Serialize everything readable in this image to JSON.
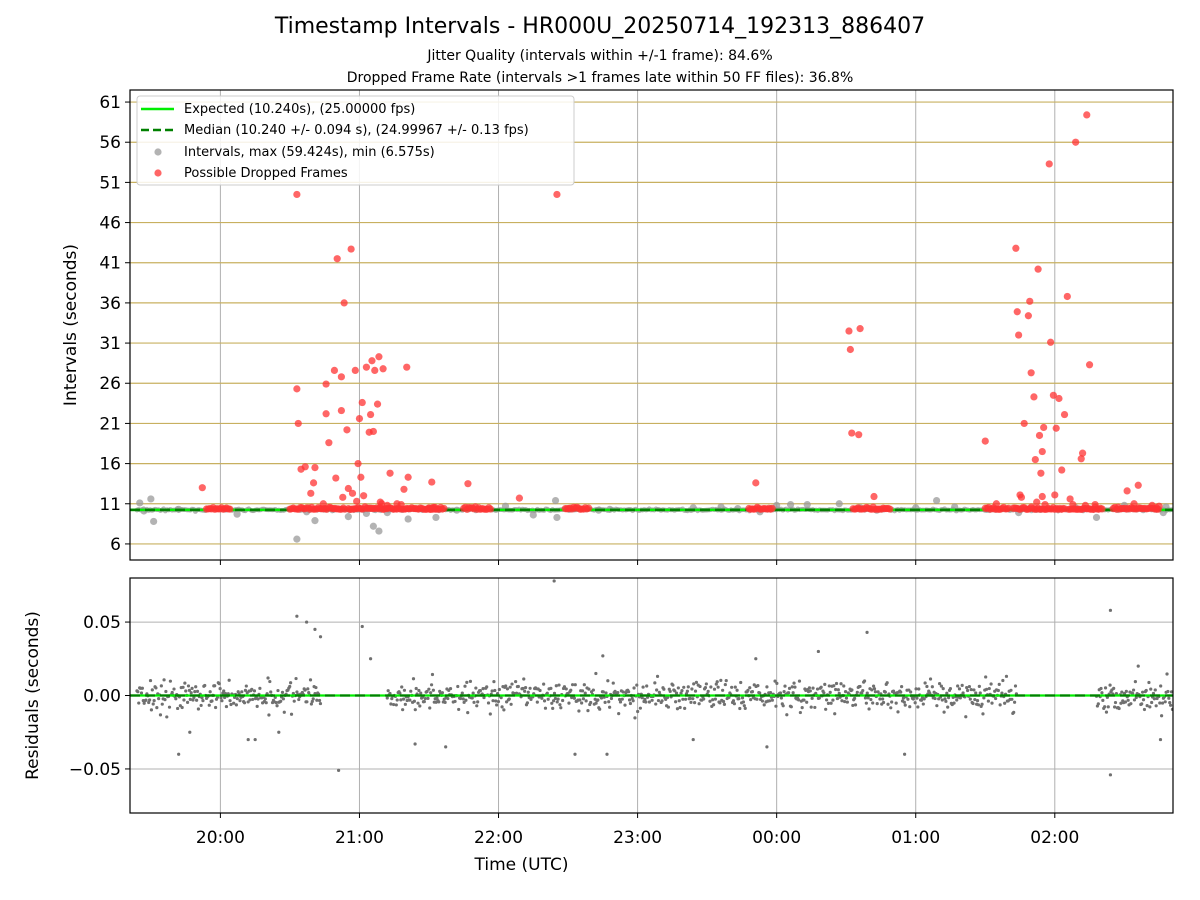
{
  "title": "Timestamp Intervals - HR000U_20250714_192313_886407",
  "subtitle_1": "Jitter Quality (intervals within +/-1 frame): 84.6%",
  "subtitle_2": "Dropped Frame Rate (intervals >1 frames late within 50 FF files): 36.8%",
  "colors": {
    "expected": "#00ee00",
    "median": "#008000",
    "intervals": "#999999",
    "dropped": "#ff3333",
    "residual_points": "#707070",
    "hgrid_top": "#c8b060",
    "grid": "#b0b0b0"
  },
  "chart_data": [
    {
      "type": "scatter",
      "name": "intervals",
      "ylabel": "Intervals (seconds)",
      "xlim": [
        19.35,
        26.85
      ],
      "ylim": [
        4.0,
        62.5
      ],
      "yticks": [
        6,
        11,
        16,
        21,
        26,
        31,
        36,
        41,
        46,
        51,
        56,
        61
      ],
      "ytick_labels": [
        "6",
        "11",
        "16",
        "21",
        "26",
        "31",
        "36",
        "41",
        "46",
        "51",
        "56",
        "61"
      ],
      "grid": true,
      "legend_position": "top-left",
      "legend": [
        {
          "key": "expected",
          "label": "Expected (10.240s), (25.00000 fps)"
        },
        {
          "key": "median",
          "label": "Median (10.240 +/- 0.094 s), (24.99967 +/- 0.13 fps)"
        },
        {
          "key": "intervals",
          "label": "Intervals, max (59.424s), min (6.575s)"
        },
        {
          "key": "dropped",
          "label": "Possible Dropped Frames"
        }
      ],
      "expected_interval": 10.24,
      "median_interval": 10.24,
      "series": [
        {
          "name": "Intervals",
          "color_key": "intervals",
          "points": [
            [
              19.42,
              11.1
            ],
            [
              19.45,
              10.1
            ],
            [
              19.5,
              11.6
            ],
            [
              19.52,
              8.8
            ],
            [
              19.7,
              10.3
            ],
            [
              20.12,
              9.7
            ],
            [
              20.55,
              6.6
            ],
            [
              20.62,
              10.0
            ],
            [
              20.68,
              8.9
            ],
            [
              20.75,
              10.4
            ],
            [
              20.92,
              9.4
            ],
            [
              21.05,
              9.8
            ],
            [
              21.1,
              8.2
            ],
            [
              21.14,
              7.6
            ],
            [
              21.2,
              9.9
            ],
            [
              21.35,
              9.1
            ],
            [
              21.55,
              9.3
            ],
            [
              21.7,
              10.2
            ],
            [
              22.05,
              10.7
            ],
            [
              22.25,
              9.6
            ],
            [
              22.41,
              11.4
            ],
            [
              22.42,
              9.3
            ],
            [
              22.72,
              10.2
            ],
            [
              22.8,
              10.3
            ],
            [
              23.4,
              10.5
            ],
            [
              23.6,
              10.6
            ],
            [
              23.72,
              10.4
            ],
            [
              23.88,
              10.0
            ],
            [
              23.96,
              10.4
            ],
            [
              24.0,
              10.8
            ],
            [
              24.1,
              10.9
            ],
            [
              24.22,
              10.9
            ],
            [
              24.45,
              11.0
            ],
            [
              24.6,
              10.5
            ],
            [
              24.72,
              10.2
            ],
            [
              25.0,
              10.5
            ],
            [
              25.15,
              11.4
            ],
            [
              25.28,
              10.6
            ],
            [
              25.74,
              9.9
            ],
            [
              25.9,
              10.3
            ],
            [
              26.15,
              10.5
            ],
            [
              26.3,
              9.3
            ],
            [
              26.5,
              10.8
            ],
            [
              26.78,
              9.9
            ],
            [
              26.8,
              10.6
            ]
          ]
        },
        {
          "name": "Possible Dropped Frames",
          "color_key": "dropped",
          "points": [
            [
              19.87,
              13.0
            ],
            [
              20.55,
              49.5
            ],
            [
              20.55,
              25.3
            ],
            [
              20.56,
              21.0
            ],
            [
              20.58,
              15.3
            ],
            [
              20.61,
              15.6
            ],
            [
              20.65,
              12.3
            ],
            [
              20.67,
              13.6
            ],
            [
              20.68,
              15.5
            ],
            [
              20.74,
              11.0
            ],
            [
              20.76,
              22.2
            ],
            [
              20.76,
              25.9
            ],
            [
              20.78,
              18.6
            ],
            [
              20.82,
              27.6
            ],
            [
              20.83,
              14.2
            ],
            [
              20.84,
              41.5
            ],
            [
              20.87,
              26.8
            ],
            [
              20.87,
              22.6
            ],
            [
              20.88,
              11.8
            ],
            [
              20.89,
              36.0
            ],
            [
              20.91,
              20.2
            ],
            [
              20.92,
              12.9
            ],
            [
              20.94,
              42.7
            ],
            [
              20.95,
              12.3
            ],
            [
              20.97,
              27.6
            ],
            [
              20.98,
              11.3
            ],
            [
              20.99,
              16.0
            ],
            [
              21.0,
              21.6
            ],
            [
              21.01,
              14.3
            ],
            [
              21.02,
              23.6
            ],
            [
              21.03,
              12.0
            ],
            [
              21.05,
              28.0
            ],
            [
              21.07,
              19.9
            ],
            [
              21.08,
              22.1
            ],
            [
              21.09,
              28.8
            ],
            [
              21.1,
              20.0
            ],
            [
              21.11,
              27.6
            ],
            [
              21.13,
              23.4
            ],
            [
              21.14,
              29.3
            ],
            [
              21.15,
              11.2
            ],
            [
              21.16,
              11.0
            ],
            [
              21.17,
              27.8
            ],
            [
              21.2,
              10.8
            ],
            [
              21.22,
              14.8
            ],
            [
              21.27,
              11.0
            ],
            [
              21.3,
              10.9
            ],
            [
              21.32,
              12.8
            ],
            [
              21.34,
              28.0
            ],
            [
              21.35,
              14.3
            ],
            [
              21.52,
              13.7
            ],
            [
              21.78,
              13.5
            ],
            [
              22.15,
              11.7
            ],
            [
              22.42,
              49.5
            ],
            [
              23.85,
              13.6
            ],
            [
              24.52,
              32.5
            ],
            [
              24.53,
              30.2
            ],
            [
              24.54,
              19.8
            ],
            [
              24.59,
              19.6
            ],
            [
              24.6,
              32.8
            ],
            [
              24.7,
              11.9
            ],
            [
              25.5,
              18.8
            ],
            [
              25.58,
              11.0
            ],
            [
              25.72,
              42.8
            ],
            [
              25.73,
              34.9
            ],
            [
              25.74,
              32.0
            ],
            [
              25.75,
              12.1
            ],
            [
              25.76,
              11.8
            ],
            [
              25.78,
              21.0
            ],
            [
              25.81,
              34.4
            ],
            [
              25.82,
              36.2
            ],
            [
              25.83,
              27.3
            ],
            [
              25.85,
              24.3
            ],
            [
              25.86,
              16.5
            ],
            [
              25.87,
              11.2
            ],
            [
              25.88,
              40.2
            ],
            [
              25.89,
              19.5
            ],
            [
              25.9,
              14.8
            ],
            [
              25.91,
              11.9
            ],
            [
              25.91,
              17.5
            ],
            [
              25.92,
              20.5
            ],
            [
              25.93,
              10.9
            ],
            [
              25.96,
              53.3
            ],
            [
              25.97,
              31.1
            ],
            [
              25.99,
              24.5
            ],
            [
              26.0,
              12.1
            ],
            [
              26.01,
              20.4
            ],
            [
              26.03,
              24.1
            ],
            [
              26.05,
              15.2
            ],
            [
              26.07,
              22.1
            ],
            [
              26.09,
              36.8
            ],
            [
              26.11,
              11.6
            ],
            [
              26.13,
              10.9
            ],
            [
              26.15,
              56.0
            ],
            [
              26.19,
              16.6
            ],
            [
              26.2,
              17.3
            ],
            [
              26.22,
              10.8
            ],
            [
              26.23,
              59.4
            ],
            [
              26.25,
              28.3
            ],
            [
              26.29,
              10.9
            ],
            [
              26.52,
              12.6
            ],
            [
              26.57,
              11.0
            ],
            [
              26.6,
              13.3
            ],
            [
              26.7,
              10.8
            ],
            [
              26.73,
              10.5
            ],
            [
              26.75,
              10.7
            ]
          ],
          "clusters": [
            [
              19.9,
              20.08
            ],
            [
              20.5,
              20.9
            ],
            [
              20.92,
              21.55
            ],
            [
              21.5,
              21.62
            ],
            [
              21.75,
              21.95
            ],
            [
              22.48,
              22.65
            ],
            [
              23.8,
              23.98
            ],
            [
              24.55,
              24.82
            ],
            [
              25.5,
              25.68
            ],
            [
              25.7,
              26.08
            ],
            [
              26.1,
              26.35
            ],
            [
              26.42,
              26.75
            ]
          ],
          "cluster_level": 10.3
        }
      ]
    },
    {
      "type": "scatter",
      "name": "residuals",
      "ylabel": "Residuals (seconds)",
      "xlabel": "Time (UTC)",
      "xlim": [
        19.35,
        26.85
      ],
      "ylim": [
        -0.08,
        0.08
      ],
      "yticks": [
        -0.05,
        0.0,
        0.05
      ],
      "ytick_labels": [
        "−0.05",
        "0.00",
        "0.05"
      ],
      "xticks": [
        20,
        21,
        22,
        23,
        24,
        25,
        26
      ],
      "xtick_labels": [
        "20:00",
        "21:00",
        "22:00",
        "23:00",
        "00:00",
        "01:00",
        "02:00"
      ],
      "grid": true,
      "zero_line": 0.0,
      "segments": [
        [
          19.4,
          20.72
        ],
        [
          21.2,
          25.73
        ],
        [
          26.3,
          26.85
        ]
      ],
      "typical_spread": 0.007,
      "outliers": [
        [
          20.55,
          0.054
        ],
        [
          20.62,
          0.05
        ],
        [
          20.68,
          0.045
        ],
        [
          20.72,
          0.04
        ],
        [
          20.85,
          -0.051
        ],
        [
          21.02,
          0.047
        ],
        [
          21.08,
          0.025
        ],
        [
          19.7,
          -0.04
        ],
        [
          19.78,
          -0.025
        ],
        [
          20.2,
          -0.03
        ],
        [
          20.25,
          -0.03
        ],
        [
          20.42,
          -0.025
        ],
        [
          22.4,
          0.078
        ],
        [
          22.55,
          -0.04
        ],
        [
          22.75,
          0.027
        ],
        [
          22.78,
          -0.04
        ],
        [
          23.4,
          -0.03
        ],
        [
          23.85,
          0.025
        ],
        [
          23.93,
          -0.035
        ],
        [
          24.3,
          0.03
        ],
        [
          24.65,
          0.043
        ],
        [
          24.92,
          -0.04
        ],
        [
          26.4,
          0.058
        ],
        [
          26.4,
          -0.054
        ],
        [
          26.6,
          0.02
        ],
        [
          26.76,
          -0.03
        ],
        [
          21.62,
          -0.035
        ],
        [
          21.4,
          -0.033
        ],
        [
          22.7,
          0.015
        ]
      ]
    }
  ]
}
